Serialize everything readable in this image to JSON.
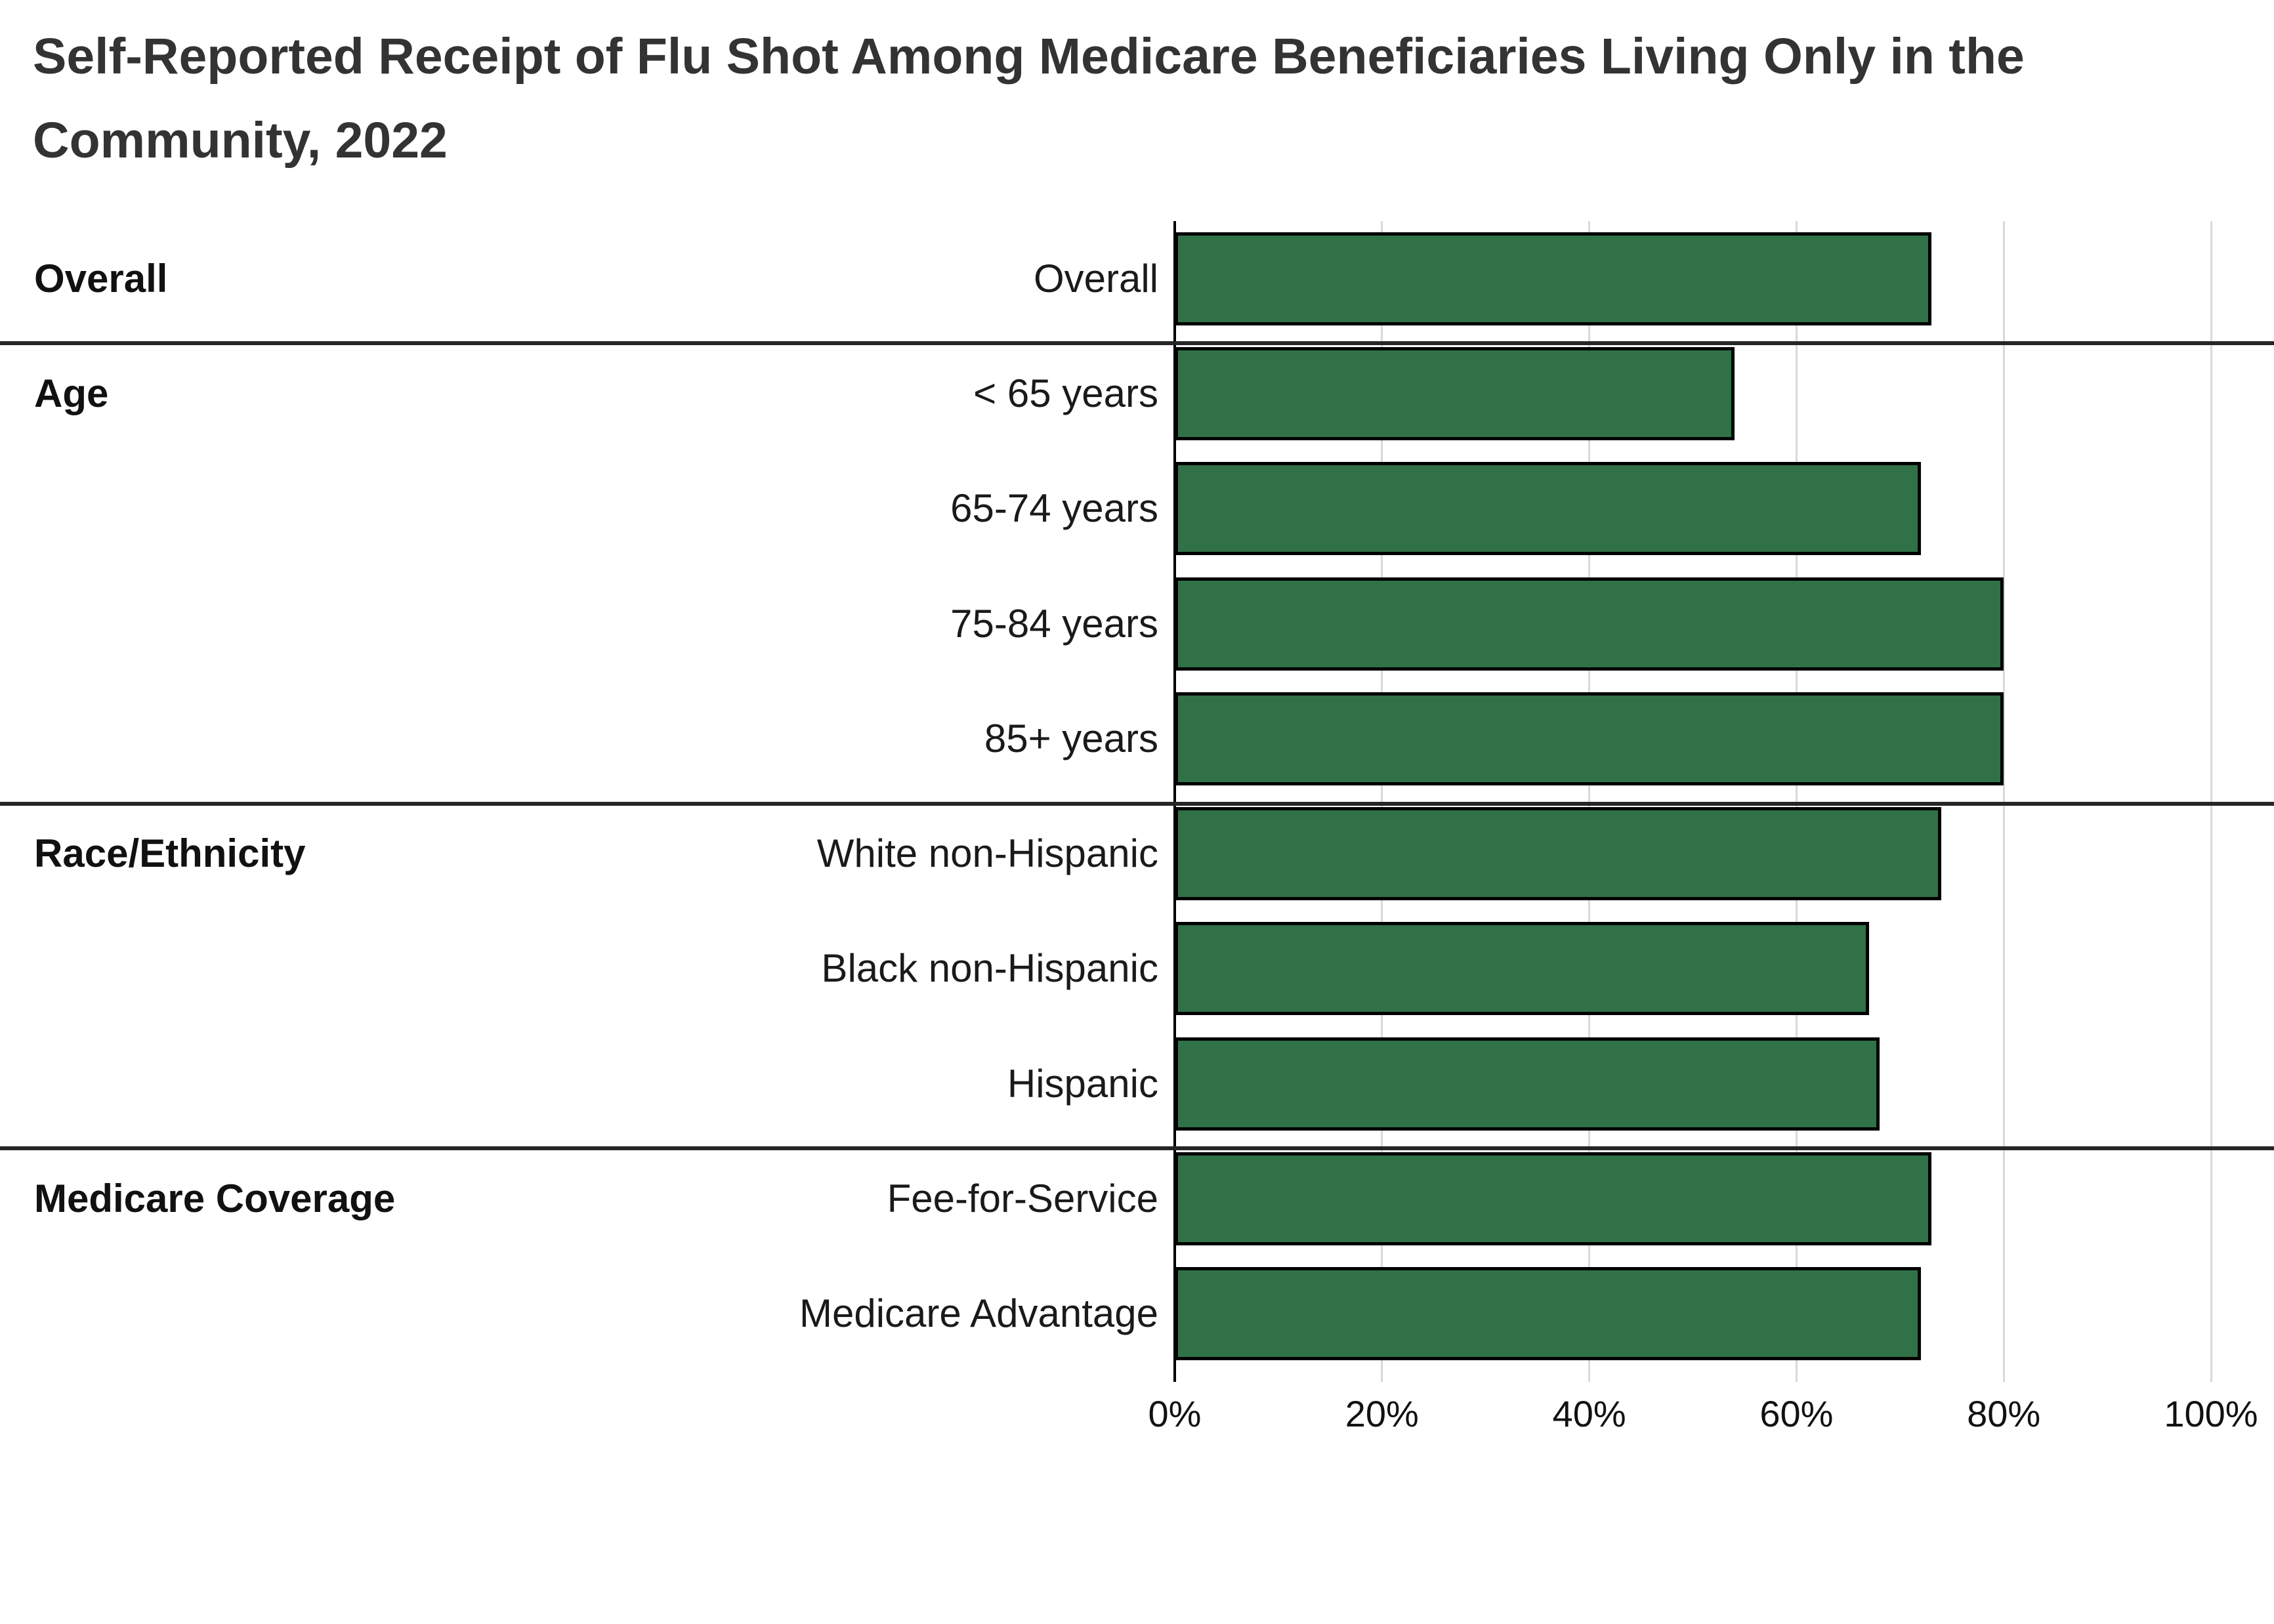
{
  "title": "Self-Reported Receipt of Flu Shot Among Medicare Beneficiaries Living Only in the Community, 2022",
  "chart_data": {
    "type": "bar",
    "orientation": "horizontal",
    "title": "Self-Reported Receipt of Flu Shot Among Medicare Beneficiaries Living Only in the Community, 2022",
    "xlabel": "",
    "ylabel": "",
    "unit": "%",
    "xlim": [
      0,
      100
    ],
    "x_ticks": [
      {
        "value": 0,
        "label": "0%"
      },
      {
        "value": 20,
        "label": "20%"
      },
      {
        "value": 40,
        "label": "40%"
      },
      {
        "value": 60,
        "label": "60%"
      },
      {
        "value": 80,
        "label": "80%"
      },
      {
        "value": 100,
        "label": "100%"
      }
    ],
    "grid": true,
    "legend": "none",
    "groups": [
      {
        "label": "Overall",
        "rows": [
          {
            "category": "Overall",
            "value": 73
          }
        ]
      },
      {
        "label": "Age",
        "rows": [
          {
            "category": "< 65 years",
            "value": 54
          },
          {
            "category": "65-74 years",
            "value": 72
          },
          {
            "category": "75-84 years",
            "value": 80
          },
          {
            "category": "85+ years",
            "value": 80
          }
        ]
      },
      {
        "label": "Race/Ethnicity",
        "rows": [
          {
            "category": "White non-Hispanic",
            "value": 74
          },
          {
            "category": "Black non-Hispanic",
            "value": 67
          },
          {
            "category": "Hispanic",
            "value": 68
          }
        ]
      },
      {
        "label": "Medicare Coverage",
        "rows": [
          {
            "category": "Fee-for-Service",
            "value": 73
          },
          {
            "category": "Medicare Advantage",
            "value": 72
          }
        ]
      }
    ],
    "colors": {
      "bar_fill": "#317148",
      "bar_border": "#000000",
      "gridline": "#d9d9d9",
      "axis_line": "#000000",
      "group_divider": "#262626",
      "title_text": "#333333",
      "label_text": "#1a1a1a"
    }
  }
}
